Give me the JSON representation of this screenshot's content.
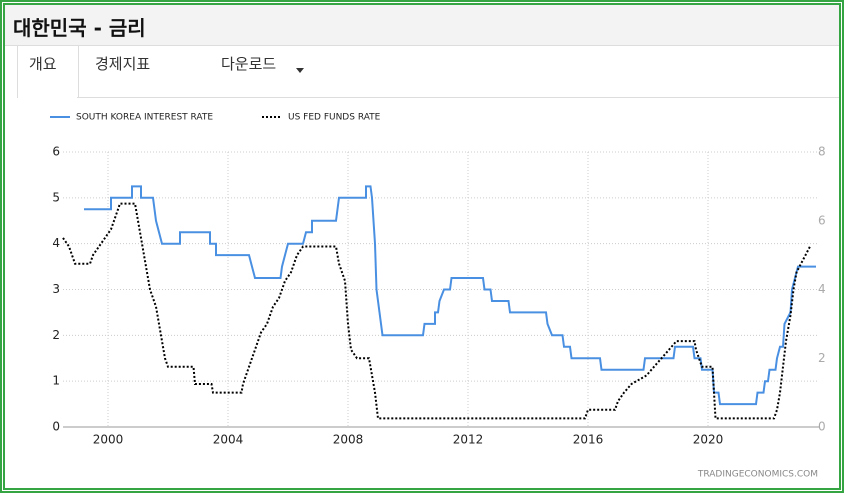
{
  "header": {
    "title": "대한민국 - 금리"
  },
  "tabs": [
    "개요",
    "경제지표",
    "다운로드"
  ],
  "chart_data": {
    "type": "line",
    "grid": true,
    "watermark": "TRADINGECONOMICS.COM",
    "xlim": [
      1998.5,
      2023.7
    ],
    "xticks": [
      2000,
      2004,
      2008,
      2012,
      2016,
      2020
    ],
    "ylim": [
      0,
      6
    ],
    "yticks": [
      0,
      1,
      2,
      3,
      4,
      5,
      6
    ],
    "y2lim": [
      0,
      8
    ],
    "y2ticks": [
      0,
      2,
      4,
      6,
      8
    ],
    "series": [
      {
        "name": "SOUTH KOREA INTEREST RATE",
        "color": "#4a90e2",
        "style": "solid",
        "x": [
          1999.2,
          2000.1,
          2000.1,
          2000.8,
          2000.8,
          2001.1,
          2001.1,
          2001.5,
          2001.6,
          2001.8,
          2002.4,
          2002.4,
          2003.4,
          2003.4,
          2003.6,
          2003.6,
          2004.7,
          2004.8,
          2004.9,
          2005.75,
          2005.8,
          2005.9,
          2006.0,
          2006.5,
          2006.6,
          2006.8,
          2006.8,
          2007.6,
          2007.65,
          2007.7,
          2008.6,
          2008.6,
          2008.75,
          2008.8,
          2008.9,
          2008.95,
          2009.05,
          2009.15,
          2010.5,
          2010.55,
          2010.9,
          2010.9,
          2011.0,
          2011.05,
          2011.2,
          2011.4,
          2011.45,
          2012.5,
          2012.55,
          2012.75,
          2012.8,
          2013.35,
          2013.4,
          2014.6,
          2014.65,
          2014.8,
          2015.15,
          2015.2,
          2015.4,
          2015.45,
          2016.4,
          2016.45,
          2017.85,
          2017.9,
          2018.85,
          2018.9,
          2019.5,
          2019.55,
          2019.75,
          2019.8,
          2020.15,
          2020.2,
          2020.35,
          2020.4,
          2021.6,
          2021.65,
          2021.85,
          2021.9,
          2022.0,
          2022.05,
          2022.25,
          2022.3,
          2022.4,
          2022.5,
          2022.55,
          2022.75,
          2022.8,
          2022.9,
          2023.0,
          2023.6
        ],
        "values": [
          4.75,
          4.75,
          5.0,
          5.0,
          5.25,
          5.25,
          5.0,
          5.0,
          4.5,
          4.0,
          4.0,
          4.25,
          4.25,
          4.0,
          4.0,
          3.75,
          3.75,
          3.5,
          3.25,
          3.25,
          3.5,
          3.75,
          4.0,
          4.0,
          4.25,
          4.25,
          4.5,
          4.5,
          4.75,
          5.0,
          5.0,
          5.25,
          5.25,
          5.0,
          4.0,
          3.0,
          2.5,
          2.0,
          2.0,
          2.25,
          2.25,
          2.5,
          2.5,
          2.75,
          3.0,
          3.0,
          3.25,
          3.25,
          3.0,
          3.0,
          2.75,
          2.75,
          2.5,
          2.5,
          2.25,
          2.0,
          2.0,
          1.75,
          1.75,
          1.5,
          1.5,
          1.25,
          1.25,
          1.5,
          1.5,
          1.75,
          1.75,
          1.5,
          1.5,
          1.25,
          1.25,
          0.75,
          0.75,
          0.5,
          0.5,
          0.75,
          0.75,
          1.0,
          1.0,
          1.25,
          1.25,
          1.5,
          1.75,
          1.75,
          2.25,
          2.5,
          3.0,
          3.25,
          3.5,
          3.5
        ]
      },
      {
        "name": "US FED FUNDS RATE",
        "color": "#000000",
        "style": "dotted",
        "axis": "y2",
        "x": [
          1998.5,
          1998.7,
          1998.9,
          1999.4,
          1999.5,
          1999.7,
          1999.9,
          2000.1,
          2000.2,
          2000.4,
          2000.9,
          2001.0,
          2001.1,
          2001.2,
          2001.3,
          2001.4,
          2001.5,
          2001.6,
          2001.7,
          2001.8,
          2001.9,
          2002.0,
          2002.85,
          2002.9,
          2003.45,
          2003.5,
          2004.45,
          2004.5,
          2004.6,
          2004.7,
          2004.9,
          2005.1,
          2005.3,
          2005.5,
          2005.7,
          2005.9,
          2006.1,
          2006.3,
          2006.5,
          2007.6,
          2007.7,
          2007.8,
          2007.9,
          2008.0,
          2008.1,
          2008.3,
          2008.7,
          2008.8,
          2008.9,
          2009.0,
          2015.9,
          2016.0,
          2016.9,
          2017.0,
          2017.2,
          2017.45,
          2017.95,
          2018.2,
          2018.45,
          2018.7,
          2018.95,
          2019.55,
          2019.6,
          2019.7,
          2019.8,
          2020.15,
          2020.2,
          2020.25,
          2022.2,
          2022.3,
          2022.4,
          2022.5,
          2022.6,
          2022.75,
          2022.85,
          2022.95,
          2023.1,
          2023.25,
          2023.4
        ],
        "values": [
          5.5,
          5.25,
          4.75,
          4.75,
          5.0,
          5.25,
          5.5,
          5.75,
          6.0,
          6.5,
          6.5,
          6.0,
          5.5,
          5.0,
          4.5,
          4.0,
          3.75,
          3.5,
          3.0,
          2.5,
          2.0,
          1.75,
          1.75,
          1.25,
          1.25,
          1.0,
          1.0,
          1.25,
          1.5,
          1.75,
          2.25,
          2.75,
          3.0,
          3.5,
          3.75,
          4.25,
          4.5,
          5.0,
          5.25,
          5.25,
          4.75,
          4.5,
          4.25,
          3.0,
          2.25,
          2.0,
          2.0,
          1.5,
          1.0,
          0.25,
          0.25,
          0.5,
          0.5,
          0.75,
          1.0,
          1.25,
          1.5,
          1.75,
          2.0,
          2.25,
          2.5,
          2.5,
          2.25,
          2.0,
          1.75,
          1.75,
          1.0,
          0.25,
          0.25,
          0.5,
          1.0,
          1.75,
          2.5,
          3.25,
          4.0,
          4.5,
          4.75,
          5.0,
          5.25
        ]
      }
    ]
  }
}
